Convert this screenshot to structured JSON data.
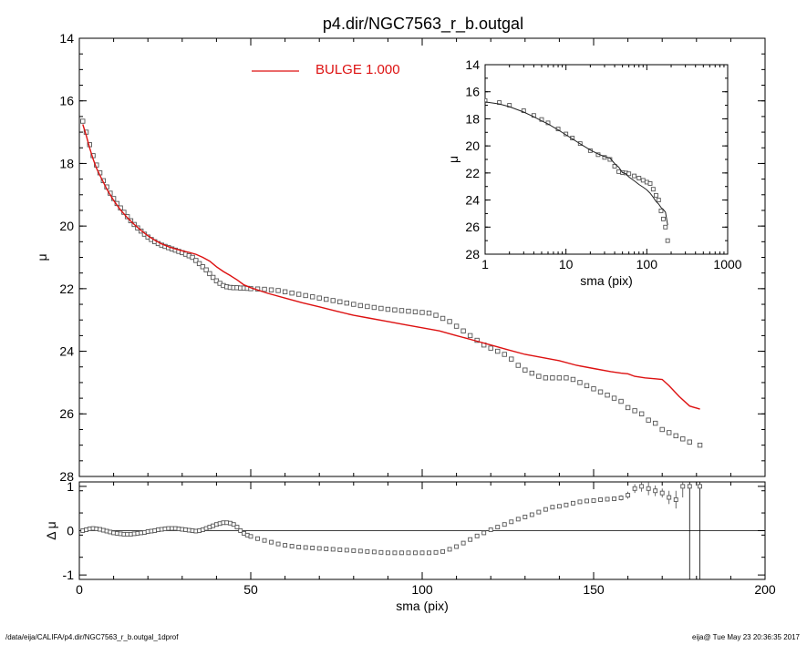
{
  "title": "p4.dir/NGC7563_r_b.outgal",
  "footer": {
    "left": "/data/eija/CALIFA/p4.dir/NGC7563_r_b.outgal_1dprof",
    "right": "eija@  Tue May 23 20:36:35 2017"
  },
  "colors": {
    "model": "#dd1111",
    "data": "#555555",
    "axis": "#000000"
  },
  "chart_data": [
    {
      "id": "main",
      "type": "scatter",
      "title": "p4.dir/NGC7563_r_b.outgal",
      "xlabel": "",
      "ylabel": "μ",
      "xlim": [
        0,
        200
      ],
      "ylim": [
        28,
        14
      ],
      "y_reversed": true,
      "xticks": [
        0,
        50,
        100,
        150,
        200
      ],
      "yticks": [
        14,
        16,
        18,
        20,
        22,
        24,
        26,
        28
      ],
      "legend": {
        "label": "BULGE  1.000",
        "placement": "top-center"
      },
      "series": [
        {
          "name": "data",
          "style": "open-squares",
          "x": [
            1,
            2,
            3,
            4,
            5,
            6,
            7,
            8,
            9,
            10,
            11,
            12,
            13,
            14,
            15,
            16,
            17,
            18,
            19,
            20,
            21,
            22,
            23,
            24,
            25,
            26,
            27,
            28,
            29,
            30,
            31,
            32,
            33,
            34,
            35,
            36,
            37,
            38,
            39,
            40,
            41,
            42,
            43,
            44,
            45,
            46,
            47,
            48,
            49,
            50,
            52,
            54,
            56,
            58,
            60,
            62,
            64,
            66,
            68,
            70,
            72,
            74,
            76,
            78,
            80,
            82,
            84,
            86,
            88,
            90,
            92,
            94,
            96,
            98,
            100,
            102,
            104,
            106,
            108,
            110,
            112,
            114,
            116,
            118,
            120,
            122,
            124,
            126,
            128,
            130,
            132,
            134,
            136,
            138,
            140,
            142,
            144,
            146,
            148,
            150,
            152,
            154,
            156,
            158,
            160,
            162,
            164,
            166,
            168,
            170,
            172,
            174,
            176,
            178,
            181
          ],
          "y": [
            16.65,
            17.0,
            17.4,
            17.75,
            18.05,
            18.3,
            18.55,
            18.75,
            18.95,
            19.12,
            19.28,
            19.42,
            19.56,
            19.7,
            19.83,
            19.95,
            20.06,
            20.16,
            20.26,
            20.35,
            20.43,
            20.5,
            20.56,
            20.61,
            20.65,
            20.69,
            20.73,
            20.77,
            20.81,
            20.85,
            20.9,
            20.95,
            21.0,
            21.1,
            21.2,
            21.3,
            21.4,
            21.52,
            21.64,
            21.75,
            21.83,
            21.9,
            21.94,
            21.96,
            21.97,
            21.97,
            21.98,
            21.98,
            21.99,
            22.0,
            22.01,
            22.02,
            22.04,
            22.06,
            22.1,
            22.14,
            22.18,
            22.22,
            22.26,
            22.3,
            22.34,
            22.38,
            22.42,
            22.46,
            22.5,
            22.54,
            22.57,
            22.6,
            22.63,
            22.66,
            22.68,
            22.7,
            22.72,
            22.74,
            22.76,
            22.78,
            22.85,
            22.95,
            23.05,
            23.2,
            23.35,
            23.5,
            23.65,
            23.8,
            23.9,
            24.0,
            24.1,
            24.25,
            24.45,
            24.6,
            24.7,
            24.8,
            24.85,
            24.85,
            24.85,
            24.85,
            24.9,
            25.0,
            25.1,
            25.2,
            25.3,
            25.4,
            25.5,
            25.6,
            25.8,
            25.9,
            26.0,
            26.2,
            26.3,
            26.5,
            26.6,
            26.7,
            26.8,
            26.9,
            27.0
          ]
        },
        {
          "name": "BULGE  1.000",
          "style": "line",
          "x": [
            1,
            2,
            3,
            4,
            5,
            6,
            8,
            10,
            12,
            14,
            16,
            18,
            20,
            22,
            24,
            26,
            28,
            30,
            32,
            34,
            36,
            38,
            40,
            42,
            44,
            46,
            48,
            50,
            55,
            60,
            65,
            70,
            75,
            80,
            85,
            90,
            95,
            100,
            105,
            110,
            115,
            120,
            125,
            130,
            135,
            140,
            145,
            150,
            155,
            158,
            160,
            162,
            165,
            168,
            170,
            172,
            175,
            178,
            181
          ],
          "y": [
            16.75,
            17.1,
            17.5,
            17.85,
            18.15,
            18.38,
            18.82,
            19.18,
            19.48,
            19.73,
            19.95,
            20.14,
            20.31,
            20.45,
            20.57,
            20.66,
            20.73,
            20.79,
            20.84,
            20.9,
            21.0,
            21.12,
            21.3,
            21.45,
            21.58,
            21.72,
            21.88,
            21.97,
            22.15,
            22.3,
            22.45,
            22.58,
            22.72,
            22.85,
            22.95,
            23.05,
            23.15,
            23.25,
            23.35,
            23.5,
            23.65,
            23.8,
            23.95,
            24.1,
            24.2,
            24.3,
            24.45,
            24.55,
            24.65,
            24.7,
            24.72,
            24.8,
            24.85,
            24.88,
            24.9,
            25.1,
            25.45,
            25.75,
            25.85
          ]
        }
      ]
    },
    {
      "id": "residual",
      "type": "scatter",
      "xlabel": "sma (pix)",
      "ylabel": "Δ μ",
      "xlim": [
        0,
        200
      ],
      "ylim": [
        -1.1,
        1.1
      ],
      "xticks": [
        0,
        50,
        100,
        150,
        200
      ],
      "yticks": [
        -1,
        0,
        1
      ],
      "series": [
        {
          "name": "residual",
          "style": "open-squares-with-errorbars",
          "x": [
            1,
            2,
            3,
            4,
            5,
            6,
            7,
            8,
            9,
            10,
            11,
            12,
            13,
            14,
            15,
            16,
            17,
            18,
            19,
            20,
            21,
            22,
            23,
            24,
            25,
            26,
            27,
            28,
            29,
            30,
            31,
            32,
            33,
            34,
            35,
            36,
            37,
            38,
            39,
            40,
            41,
            42,
            43,
            44,
            45,
            46,
            47,
            48,
            49,
            50,
            52,
            54,
            56,
            58,
            60,
            62,
            64,
            66,
            68,
            70,
            72,
            74,
            76,
            78,
            80,
            82,
            84,
            86,
            88,
            90,
            92,
            94,
            96,
            98,
            100,
            102,
            104,
            106,
            108,
            110,
            112,
            114,
            116,
            118,
            120,
            122,
            124,
            126,
            128,
            130,
            132,
            134,
            136,
            138,
            140,
            142,
            144,
            146,
            148,
            150,
            152,
            154,
            156,
            158,
            160,
            162,
            164,
            166,
            168,
            170,
            172,
            174,
            176,
            178,
            181
          ],
          "y": [
            0.0,
            0.02,
            0.04,
            0.05,
            0.04,
            0.03,
            0.01,
            -0.01,
            -0.03,
            -0.05,
            -0.06,
            -0.07,
            -0.08,
            -0.08,
            -0.08,
            -0.07,
            -0.06,
            -0.05,
            -0.04,
            -0.02,
            -0.01,
            0.0,
            0.02,
            0.03,
            0.04,
            0.05,
            0.05,
            0.05,
            0.04,
            0.03,
            0.02,
            0.01,
            0.0,
            -0.01,
            0.0,
            0.02,
            0.05,
            0.08,
            0.11,
            0.14,
            0.16,
            0.18,
            0.18,
            0.17,
            0.14,
            0.08,
            0.0,
            -0.06,
            -0.1,
            -0.13,
            -0.18,
            -0.22,
            -0.26,
            -0.3,
            -0.33,
            -0.35,
            -0.37,
            -0.38,
            -0.39,
            -0.4,
            -0.41,
            -0.42,
            -0.43,
            -0.44,
            -0.45,
            -0.46,
            -0.47,
            -0.48,
            -0.49,
            -0.5,
            -0.5,
            -0.5,
            -0.5,
            -0.5,
            -0.5,
            -0.5,
            -0.49,
            -0.47,
            -0.42,
            -0.36,
            -0.28,
            -0.2,
            -0.12,
            -0.05,
            0.02,
            0.08,
            0.14,
            0.2,
            0.26,
            0.31,
            0.36,
            0.42,
            0.48,
            0.53,
            0.55,
            0.58,
            0.62,
            0.65,
            0.67,
            0.68,
            0.7,
            0.71,
            0.72,
            0.74,
            0.8,
            0.95,
            1.0,
            0.95,
            0.9,
            0.85,
            0.75,
            0.7,
            1.0,
            1.0,
            1.0
          ],
          "err": [
            0,
            0,
            0,
            0,
            0,
            0,
            0,
            0,
            0,
            0,
            0,
            0,
            0,
            0,
            0,
            0,
            0,
            0,
            0,
            0,
            0,
            0,
            0,
            0,
            0,
            0,
            0,
            0,
            0,
            0,
            0,
            0,
            0,
            0,
            0,
            0,
            0,
            0,
            0,
            0,
            0,
            0,
            0,
            0,
            0,
            0,
            0,
            0,
            0,
            0,
            0,
            0,
            0,
            0,
            0,
            0,
            0,
            0,
            0,
            0,
            0,
            0,
            0,
            0,
            0,
            0,
            0,
            0,
            0,
            0,
            0,
            0,
            0,
            0,
            0,
            0,
            0,
            0,
            0,
            0,
            0,
            0,
            0,
            0,
            0,
            0,
            0,
            0,
            0,
            0,
            0,
            0,
            0,
            0,
            0,
            0,
            0,
            0,
            0,
            0.03,
            0.04,
            0.05,
            0.05,
            0.06,
            0.08,
            0.1,
            0.12,
            0.15,
            0.12,
            0.1,
            0.15,
            0.2,
            0.25,
            0,
            0
          ]
        }
      ],
      "vlines": [
        178,
        181
      ],
      "hline": 0
    },
    {
      "id": "inset",
      "type": "scatter",
      "xlabel": "sma (pix)",
      "ylabel": "μ",
      "xscale": "log",
      "xlim": [
        1,
        1000
      ],
      "ylim": [
        28,
        14
      ],
      "y_reversed": true,
      "xticks": [
        1,
        10,
        100,
        1000
      ],
      "yticks": [
        14,
        16,
        18,
        20,
        22,
        24,
        26,
        28
      ],
      "series": [
        {
          "name": "data",
          "style": "open-squares",
          "x": [
            1,
            1.5,
            2,
            3,
            4,
            5,
            6,
            8,
            10,
            12,
            15,
            20,
            25,
            30,
            35,
            40,
            45,
            50,
            55,
            60,
            70,
            80,
            90,
            100,
            110,
            120,
            130,
            140,
            150,
            160,
            170,
            181
          ],
          "y": [
            16.65,
            16.8,
            17.0,
            17.4,
            17.75,
            18.05,
            18.3,
            18.75,
            19.12,
            19.42,
            19.83,
            20.35,
            20.65,
            20.85,
            21.0,
            21.5,
            21.9,
            21.97,
            22.0,
            22.06,
            22.22,
            22.38,
            22.54,
            22.68,
            22.78,
            23.2,
            23.65,
            24.0,
            24.8,
            25.4,
            26.0,
            27.0
          ]
        },
        {
          "name": "model",
          "style": "line",
          "x": [
            1,
            1.5,
            2,
            3,
            4,
            5,
            6,
            8,
            10,
            12,
            15,
            20,
            25,
            30,
            35,
            40,
            45,
            50,
            55,
            60,
            70,
            80,
            90,
            100,
            110,
            120,
            130,
            140,
            150,
            160,
            170,
            181
          ],
          "y": [
            16.75,
            16.9,
            17.1,
            17.5,
            17.85,
            18.15,
            18.38,
            18.82,
            19.18,
            19.48,
            19.85,
            20.31,
            20.6,
            20.79,
            20.9,
            21.3,
            21.58,
            21.97,
            22.05,
            22.3,
            22.58,
            22.85,
            23.05,
            23.25,
            23.5,
            23.8,
            24.1,
            24.3,
            24.55,
            24.7,
            24.9,
            25.85
          ]
        }
      ]
    }
  ]
}
